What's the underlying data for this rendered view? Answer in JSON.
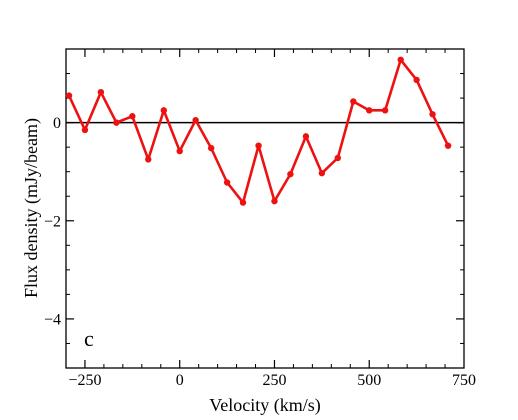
{
  "chart_data": {
    "type": "line",
    "panel_label": "c",
    "xlabel": "Velocity (km/s)",
    "ylabel": "Flux density (mJy/beam)",
    "xlim": [
      -300,
      750
    ],
    "ylim": [
      -5,
      1.5
    ],
    "x_ticks": [
      -250,
      0,
      250,
      500,
      750
    ],
    "x_tick_labels": [
      "−250",
      "0",
      "250",
      "500",
      "750"
    ],
    "y_ticks": [
      -4,
      -2,
      0
    ],
    "y_tick_labels": [
      "−4",
      "−2",
      "0"
    ],
    "zero_line": true,
    "grid": false,
    "line_color": "#ee1111",
    "series": [
      {
        "x": [
          -292,
          -250,
          -208,
          -167,
          -125,
          -83,
          -42,
          0,
          42,
          83,
          125,
          167,
          208,
          250,
          292,
          333,
          375,
          417,
          458,
          500,
          542,
          583,
          625,
          667,
          708
        ],
        "y": [
          0.55,
          -0.15,
          0.62,
          0.0,
          0.13,
          -0.75,
          0.25,
          -0.58,
          0.05,
          -0.52,
          -1.22,
          -1.63,
          -0.47,
          -1.6,
          -1.05,
          -0.28,
          -1.03,
          -0.72,
          0.43,
          0.25,
          0.25,
          1.28,
          0.87,
          0.17,
          -0.47
        ]
      }
    ]
  }
}
